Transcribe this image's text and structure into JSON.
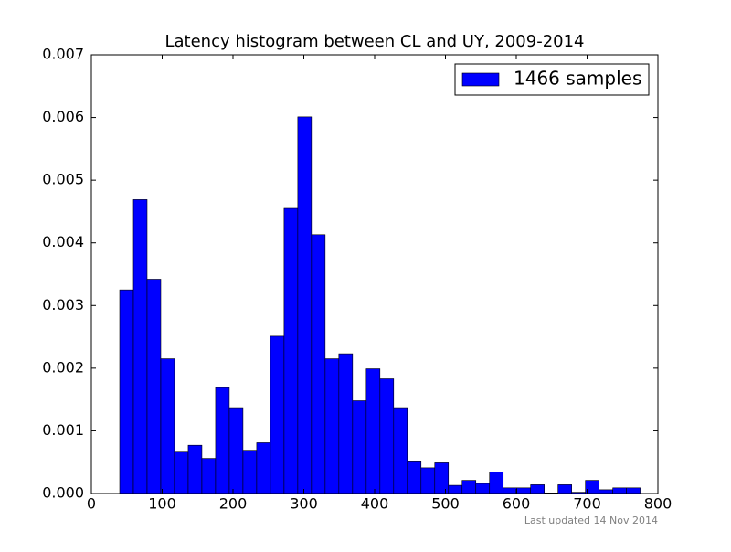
{
  "chart_data": {
    "type": "histogram",
    "title": "Latency histogram between CL and UY, 2009-2014",
    "footnote": "Last updated 14 Nov 2014",
    "bins": [
      40,
      59.34,
      78.68,
      98.03,
      117.37,
      136.71,
      156.05,
      175.39,
      194.74,
      214.08,
      233.42,
      252.76,
      272.11,
      291.45,
      310.79,
      330.13,
      349.47,
      368.82,
      388.16,
      407.5,
      426.84,
      446.18,
      465.53,
      484.87,
      504.21,
      523.55,
      542.89,
      562.24,
      581.58,
      600.92,
      620.26,
      639.61,
      658.95,
      678.29,
      697.63,
      716.97,
      736.32,
      755.66,
      775
    ],
    "series": [
      {
        "name": "1466 samples",
        "color": "#0000ff",
        "values": [
          0.00325,
          0.00469,
          0.00342,
          0.00215,
          0.00066,
          0.00077,
          0.00056,
          0.00169,
          0.00137,
          0.00069,
          0.00081,
          0.00251,
          0.00455,
          0.00601,
          0.00413,
          0.00215,
          0.00223,
          0.00148,
          0.00199,
          0.00183,
          0.00137,
          0.00052,
          0.00041,
          0.00049,
          0.00013,
          0.00021,
          0.00016,
          0.00034,
          9e-05,
          9e-05,
          0.00014,
          1e-05,
          0.00014,
          2e-05,
          0.00021,
          6e-05,
          9e-05,
          9e-05
        ]
      }
    ],
    "xlim": [
      0,
      800
    ],
    "xticks": [
      0,
      100,
      200,
      300,
      400,
      500,
      600,
      700,
      800
    ],
    "ylim": [
      0,
      0.007
    ],
    "yticks": [
      {
        "value": 0,
        "label": "0.000"
      },
      {
        "value": 0.001,
        "label": "0.001"
      },
      {
        "value": 0.002,
        "label": "0.002"
      },
      {
        "value": 0.003,
        "label": "0.003"
      },
      {
        "value": 0.004,
        "label": "0.004"
      },
      {
        "value": 0.005,
        "label": "0.005"
      },
      {
        "value": 0.006,
        "label": "0.006"
      },
      {
        "value": 0.007,
        "label": "0.007"
      }
    ],
    "legend": "upper right"
  }
}
